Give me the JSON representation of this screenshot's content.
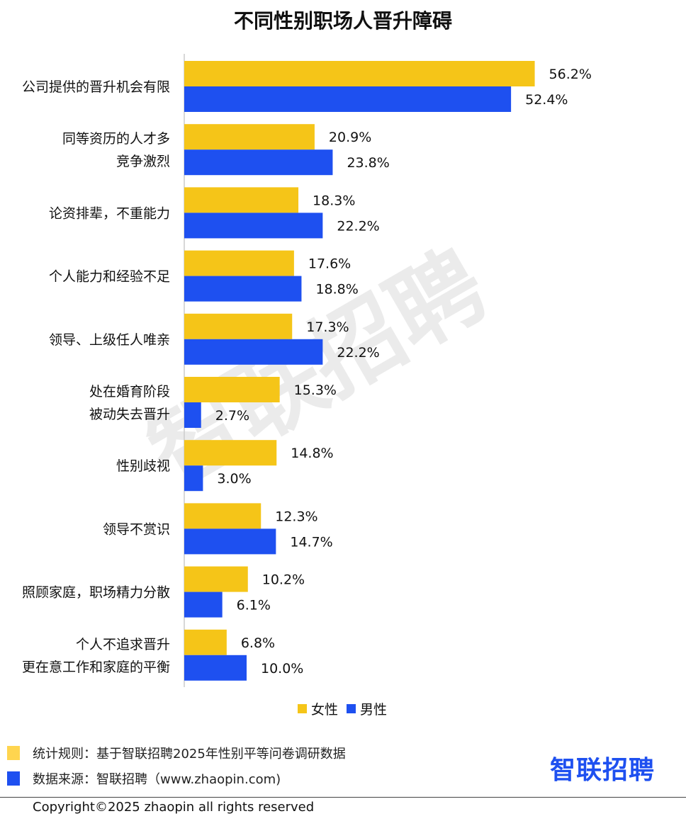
{
  "chart_data": {
    "type": "bar",
    "orientation": "horizontal",
    "title": "不同性别职场人晋升障碍",
    "categories": [
      [
        "公司提供的晋升机会有限"
      ],
      [
        "同等资历的人才多",
        "竞争激烈"
      ],
      [
        "论资排辈，不重能力"
      ],
      [
        "个人能力和经验不足"
      ],
      [
        "领导、上级任人唯亲"
      ],
      [
        "处在婚育阶段",
        "被动失去晋升"
      ],
      [
        "性别歧视"
      ],
      [
        "领导不赏识"
      ],
      [
        "照顾家庭，职场精力分散"
      ],
      [
        "个人不追求晋升",
        "更在意工作和家庭的平衡"
      ]
    ],
    "series": [
      {
        "name": "女性",
        "color": "#f5c518",
        "values": [
          56.2,
          20.9,
          18.3,
          17.6,
          17.3,
          15.3,
          14.8,
          12.3,
          10.2,
          6.8
        ],
        "labels": [
          "56.2%",
          "20.9%",
          "18.3%",
          "17.6%",
          "17.3%",
          "15.3%",
          "14.8%",
          "12.3%",
          "10.2%",
          "6.8%"
        ]
      },
      {
        "name": "男性",
        "color": "#1e50f0",
        "values": [
          52.4,
          23.8,
          22.2,
          18.8,
          22.2,
          2.7,
          3.0,
          14.7,
          6.1,
          10.0
        ],
        "labels": [
          "52.4%",
          "23.8%",
          "22.2%",
          "18.8%",
          "22.2%",
          "2.7%",
          "3.0%",
          "14.7%",
          "6.1%",
          "10.0%"
        ]
      }
    ],
    "xlim": [
      0,
      60
    ],
    "grid": false,
    "legend_position": "bottom"
  },
  "watermark": "智联招聘",
  "notes": {
    "rule": "统计规则：基于智联招聘2025年性别平等问卷调研数据",
    "rule_color": "#ffd54f",
    "source": "数据来源：智联招聘（www.zhaopin.com)",
    "source_color": "#1e50f0"
  },
  "brand_logo": "智联招聘",
  "copyright": "Copyright©2025 zhaopin all rights reserved"
}
